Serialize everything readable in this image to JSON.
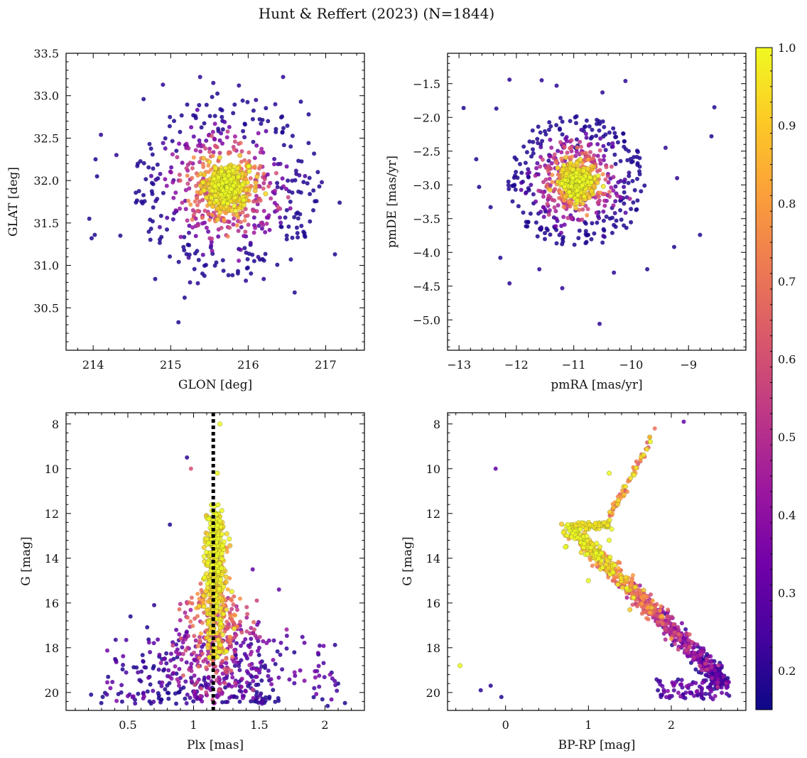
{
  "figure": {
    "title": "Hunt & Reffert (2023) (N=1844)"
  },
  "colorbar": {
    "range": [
      0.15,
      1.0
    ],
    "ticks": [
      0.2,
      0.3,
      0.4,
      0.5,
      0.6,
      0.7,
      0.8,
      0.9,
      1.0
    ],
    "colormap": [
      "#0d0887",
      "#46039f",
      "#7201a8",
      "#9c179e",
      "#bd3786",
      "#d8576b",
      "#ed7953",
      "#fb9f3a",
      "#fdca26",
      "#f0f921"
    ]
  },
  "chart_data": [
    {
      "id": "sky",
      "type": "scatter",
      "xlabel": "GLON [deg]",
      "ylabel": "GLAT [deg]",
      "xlim": [
        213.65,
        217.5
      ],
      "ylim": [
        30.0,
        33.5
      ],
      "xticks": [
        214,
        215,
        216,
        217
      ],
      "yticks": [
        30.5,
        31.0,
        31.5,
        32.0,
        32.5,
        33.0,
        33.5
      ],
      "cluster_center": {
        "x": 215.72,
        "y": 31.93
      },
      "points": [
        [
          215.1,
          30.33,
          0.18
        ],
        [
          215.18,
          30.62,
          0.18
        ],
        [
          215.25,
          30.8,
          0.2
        ],
        [
          216.6,
          30.68,
          0.18
        ],
        [
          213.98,
          31.32,
          0.18
        ],
        [
          214.02,
          31.36,
          0.18
        ],
        [
          213.95,
          31.55,
          0.18
        ],
        [
          214.05,
          32.05,
          0.18
        ],
        [
          214.1,
          32.54,
          0.2
        ],
        [
          214.03,
          32.25,
          0.18
        ],
        [
          217.12,
          31.13,
          0.18
        ],
        [
          217.18,
          31.74,
          0.18
        ],
        [
          216.45,
          33.22,
          0.2
        ],
        [
          215.38,
          33.22,
          0.2
        ],
        [
          214.65,
          32.96,
          0.18
        ],
        [
          215.88,
          33.12,
          0.2
        ],
        [
          216.68,
          32.93,
          0.18
        ],
        [
          216.78,
          32.78,
          0.18
        ],
        [
          214.9,
          33.13,
          0.2
        ],
        [
          215.55,
          33.15,
          0.2
        ],
        [
          214.8,
          30.84,
          0.18
        ],
        [
          215.35,
          30.79,
          0.2
        ],
        [
          216.2,
          30.84,
          0.2
        ],
        [
          215.97,
          30.82,
          0.2
        ],
        [
          216.55,
          31.07,
          0.18
        ],
        [
          214.35,
          31.35,
          0.18
        ],
        [
          216.95,
          31.98,
          0.2
        ],
        [
          214.3,
          32.3,
          0.2
        ],
        [
          216.35,
          32.9,
          0.2
        ],
        [
          216.1,
          32.95,
          0.2
        ],
        [
          215.62,
          31.95,
          1.0
        ],
        [
          215.7,
          32.02,
          1.0
        ],
        [
          215.78,
          31.9,
          1.0
        ],
        [
          215.68,
          31.85,
          0.95
        ],
        [
          215.8,
          32.05,
          0.95
        ]
      ]
    },
    {
      "id": "pm",
      "type": "scatter",
      "xlabel": "pmRA [mas/yr]",
      "ylabel": "pmDE [mas/yr]",
      "xlim": [
        -13.2,
        -8.0
      ],
      "ylim": [
        -5.45,
        -1.05
      ],
      "xticks": [
        -13,
        -12,
        -11,
        -10,
        -9
      ],
      "yticks": [
        -5.0,
        -4.5,
        -4.0,
        -3.5,
        -3.0,
        -2.5,
        -2.0,
        -1.5
      ],
      "cluster_center": {
        "x": -10.95,
        "y": -2.95
      },
      "points": [
        [
          -12.92,
          -1.86,
          0.18
        ],
        [
          -12.35,
          -1.87,
          0.18
        ],
        [
          -12.12,
          -1.44,
          0.2
        ],
        [
          -11.56,
          -1.45,
          0.2
        ],
        [
          -11.3,
          -1.53,
          0.2
        ],
        [
          -10.5,
          -1.63,
          0.2
        ],
        [
          -10.1,
          -1.46,
          0.2
        ],
        [
          -8.55,
          -1.85,
          0.18
        ],
        [
          -8.6,
          -2.28,
          0.18
        ],
        [
          -12.7,
          -2.62,
          0.18
        ],
        [
          -12.65,
          -3.03,
          0.18
        ],
        [
          -12.45,
          -3.33,
          0.18
        ],
        [
          -12.28,
          -4.08,
          0.18
        ],
        [
          -12.12,
          -4.46,
          0.2
        ],
        [
          -11.6,
          -4.25,
          0.2
        ],
        [
          -11.2,
          -4.53,
          0.2
        ],
        [
          -10.55,
          -5.06,
          0.2
        ],
        [
          -10.3,
          -4.3,
          0.2
        ],
        [
          -9.72,
          -4.25,
          0.18
        ],
        [
          -9.25,
          -3.92,
          0.18
        ],
        [
          -8.8,
          -3.74,
          0.18
        ],
        [
          -9.2,
          -2.9,
          0.2
        ],
        [
          -9.4,
          -2.45,
          0.2
        ],
        [
          -10.9,
          -2.95,
          1.0
        ],
        [
          -11.02,
          -2.9,
          1.0
        ],
        [
          -10.85,
          -3.05,
          0.95
        ],
        [
          -11.1,
          -3.0,
          0.95
        ],
        [
          -10.95,
          -2.82,
          1.0
        ]
      ]
    },
    {
      "id": "plx",
      "type": "scatter",
      "xlabel": "Plx [mas]",
      "ylabel": "G [mag]",
      "xlim": [
        0.03,
        2.3
      ],
      "ylim": [
        20.8,
        7.5
      ],
      "xticks": [
        0.5,
        1.0,
        1.5,
        2.0
      ],
      "yticks": [
        8,
        10,
        12,
        14,
        16,
        18,
        20
      ],
      "reference_line_x": 1.15,
      "points": [
        [
          0.22,
          20.1,
          0.18
        ],
        [
          0.35,
          19.3,
          0.18
        ],
        [
          0.45,
          20.0,
          0.2
        ],
        [
          0.52,
          16.6,
          0.18
        ],
        [
          0.6,
          19.5,
          0.2
        ],
        [
          0.7,
          16.1,
          0.2
        ],
        [
          0.82,
          12.5,
          0.18
        ],
        [
          0.95,
          9.5,
          0.2
        ],
        [
          0.98,
          10.0,
          0.6
        ],
        [
          1.95,
          18.3,
          0.18
        ],
        [
          2.1,
          19.6,
          0.18
        ],
        [
          2.02,
          20.6,
          0.18
        ],
        [
          1.65,
          15.4,
          0.3
        ],
        [
          1.45,
          14.5,
          0.3
        ],
        [
          1.2,
          8.0,
          1.0
        ],
        [
          1.18,
          10.2,
          1.0
        ],
        [
          1.15,
          12.5,
          1.0
        ],
        [
          1.16,
          15.0,
          1.0
        ],
        [
          1.2,
          17.0,
          0.9
        ]
      ]
    },
    {
      "id": "cmd",
      "type": "scatter",
      "xlabel": "BP-RP [mag]",
      "ylabel": "G [mag]",
      "xlim": [
        -0.7,
        2.9
      ],
      "ylim": [
        20.8,
        7.5
      ],
      "xticks": [
        0,
        1,
        2
      ],
      "yticks": [
        8,
        10,
        12,
        14,
        16,
        18,
        20
      ],
      "points": [
        [
          -0.55,
          18.8,
          1.0
        ],
        [
          -0.3,
          19.9,
          0.2
        ],
        [
          -0.18,
          19.7,
          0.2
        ],
        [
          -0.05,
          20.2,
          0.18
        ],
        [
          -0.12,
          10.0,
          0.3
        ],
        [
          2.15,
          7.9,
          0.3
        ],
        [
          1.8,
          8.2,
          0.7
        ],
        [
          0.75,
          12.5,
          1.0
        ],
        [
          0.72,
          13.5,
          1.0
        ],
        [
          1.0,
          15.0,
          1.0
        ],
        [
          1.5,
          16.3,
          0.9
        ],
        [
          2.0,
          17.6,
          0.8
        ],
        [
          2.4,
          19.0,
          0.5
        ],
        [
          1.25,
          10.2,
          1.0
        ],
        [
          1.28,
          12.7,
          1.0
        ],
        [
          1.25,
          13.2,
          1.0
        ]
      ]
    }
  ]
}
